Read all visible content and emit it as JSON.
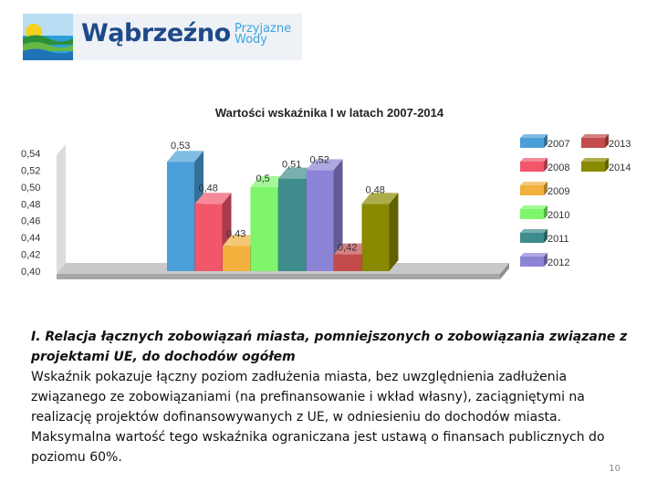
{
  "logo": {
    "town": "Wąbrzeźno",
    "tagline": [
      "Przyjazne",
      "Wody"
    ]
  },
  "chart_data": {
    "type": "bar",
    "title": "Wartości wskaźnika I w latach 2007-2014",
    "xlabel": "",
    "ylabel": "",
    "ylim": [
      0.4,
      0.54
    ],
    "y_ticks": [
      "0,54",
      "0,52",
      "0,50",
      "0,48",
      "0,46",
      "0,44",
      "0,42",
      "0,40"
    ],
    "legend_position": "right",
    "series": [
      {
        "name": "2007",
        "value": 0.53,
        "label": "0,53",
        "color": "#4a9fd8"
      },
      {
        "name": "2008",
        "value": 0.48,
        "label": "0,48",
        "color": "#f2566a"
      },
      {
        "name": "2009",
        "value": 0.43,
        "label": "0,43",
        "color": "#f1b13c"
      },
      {
        "name": "2010",
        "value": 0.5,
        "label": "0,5",
        "color": "#7ef56a"
      },
      {
        "name": "2011",
        "value": 0.51,
        "label": "0,51",
        "color": "#3e8c8c"
      },
      {
        "name": "2012",
        "value": 0.52,
        "label": "0,52",
        "color": "#8b84d6"
      },
      {
        "name": "2013",
        "value": 0.42,
        "label": "0,42",
        "color": "#c24b4b"
      },
      {
        "name": "2014",
        "value": 0.48,
        "label": "0,48",
        "color": "#8a8a00"
      }
    ]
  },
  "caption": {
    "heading": "I. Relacja łącznych zobowiązań miasta, pomniejszonych o zobowiązania związane z projektami UE, do dochodów ogółem",
    "body": "Wskaźnik pokazuje łączny poziom zadłużenia miasta, bez uwzględnienia zadłużenia związanego ze zobowiązaniami (na prefinansowanie i wkład własny), zaciągniętymi na realizację projektów dofinansowywanych z UE, w odniesieniu do dochodów miasta. Maksymalna wartość tego wskaźnika ograniczana jest ustawą o finansach publicznych do poziomu 60%."
  },
  "page_number": "10"
}
